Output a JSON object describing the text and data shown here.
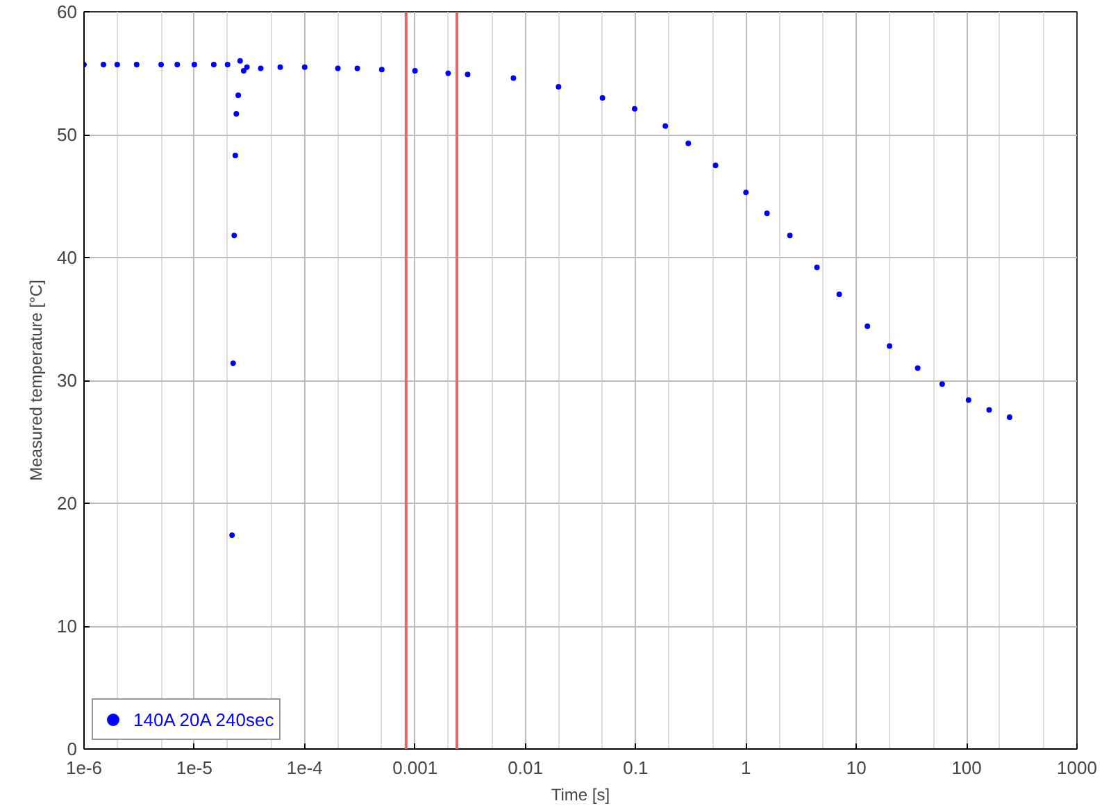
{
  "chart_data": {
    "type": "scatter",
    "xlabel": "Time [s]",
    "ylabel": "Measured temperature [°C]",
    "log": "x",
    "grid": true,
    "legend": "bottom left",
    "marker": "circle",
    "xlim": [
      1e-06,
      1000
    ],
    "ylim": [
      0,
      60
    ],
    "xticks": [
      {
        "value": 1e-06,
        "label": "1e-6"
      },
      {
        "value": 1e-05,
        "label": "1e-5"
      },
      {
        "value": 0.0001,
        "label": "1e-4"
      },
      0.001,
      0.01,
      0.1,
      1,
      10,
      100,
      1000
    ],
    "yticks": [
      0,
      10,
      20,
      30,
      40,
      50,
      60
    ],
    "ref_lines": [
      {
        "axis": "x",
        "value": 0.00083,
        "color": "#e06868"
      },
      {
        "axis": "x",
        "value": 0.0024,
        "color": "#e06868"
      }
    ],
    "series": [
      {
        "name": "140A 20A 240sec",
        "color": "#0000ff",
        "x": [
          1e-06,
          1.5e-06,
          2e-06,
          3e-06,
          5e-06,
          7e-06,
          1e-05,
          1.5e-05,
          2e-05,
          2.2e-05,
          2.25e-05,
          2.3e-05,
          2.35e-05,
          2.4e-05,
          2.5e-05,
          2.6e-05,
          2.8e-05,
          3e-05,
          4e-05,
          6e-05,
          0.0001,
          0.0002,
          0.0003,
          0.0005,
          0.001,
          0.002,
          0.003,
          0.0078,
          0.02,
          0.05,
          0.098,
          0.186,
          0.3,
          0.53,
          1.0,
          1.55,
          2.5,
          4.4,
          7.0,
          12.6,
          20,
          36,
          60,
          104,
          160,
          245
        ],
        "values": [
          55.7,
          55.7,
          55.7,
          55.7,
          55.7,
          55.7,
          55.7,
          55.7,
          55.7,
          17.4,
          31.4,
          41.8,
          48.3,
          51.7,
          53.2,
          56.0,
          55.2,
          55.5,
          55.4,
          55.5,
          55.5,
          55.4,
          55.4,
          55.3,
          55.2,
          55.0,
          54.9,
          54.6,
          53.9,
          53.0,
          52.1,
          50.7,
          49.3,
          47.5,
          45.3,
          43.6,
          41.8,
          39.2,
          37.0,
          34.4,
          32.8,
          31.0,
          29.7,
          28.4,
          27.6,
          27.0
        ]
      }
    ]
  }
}
